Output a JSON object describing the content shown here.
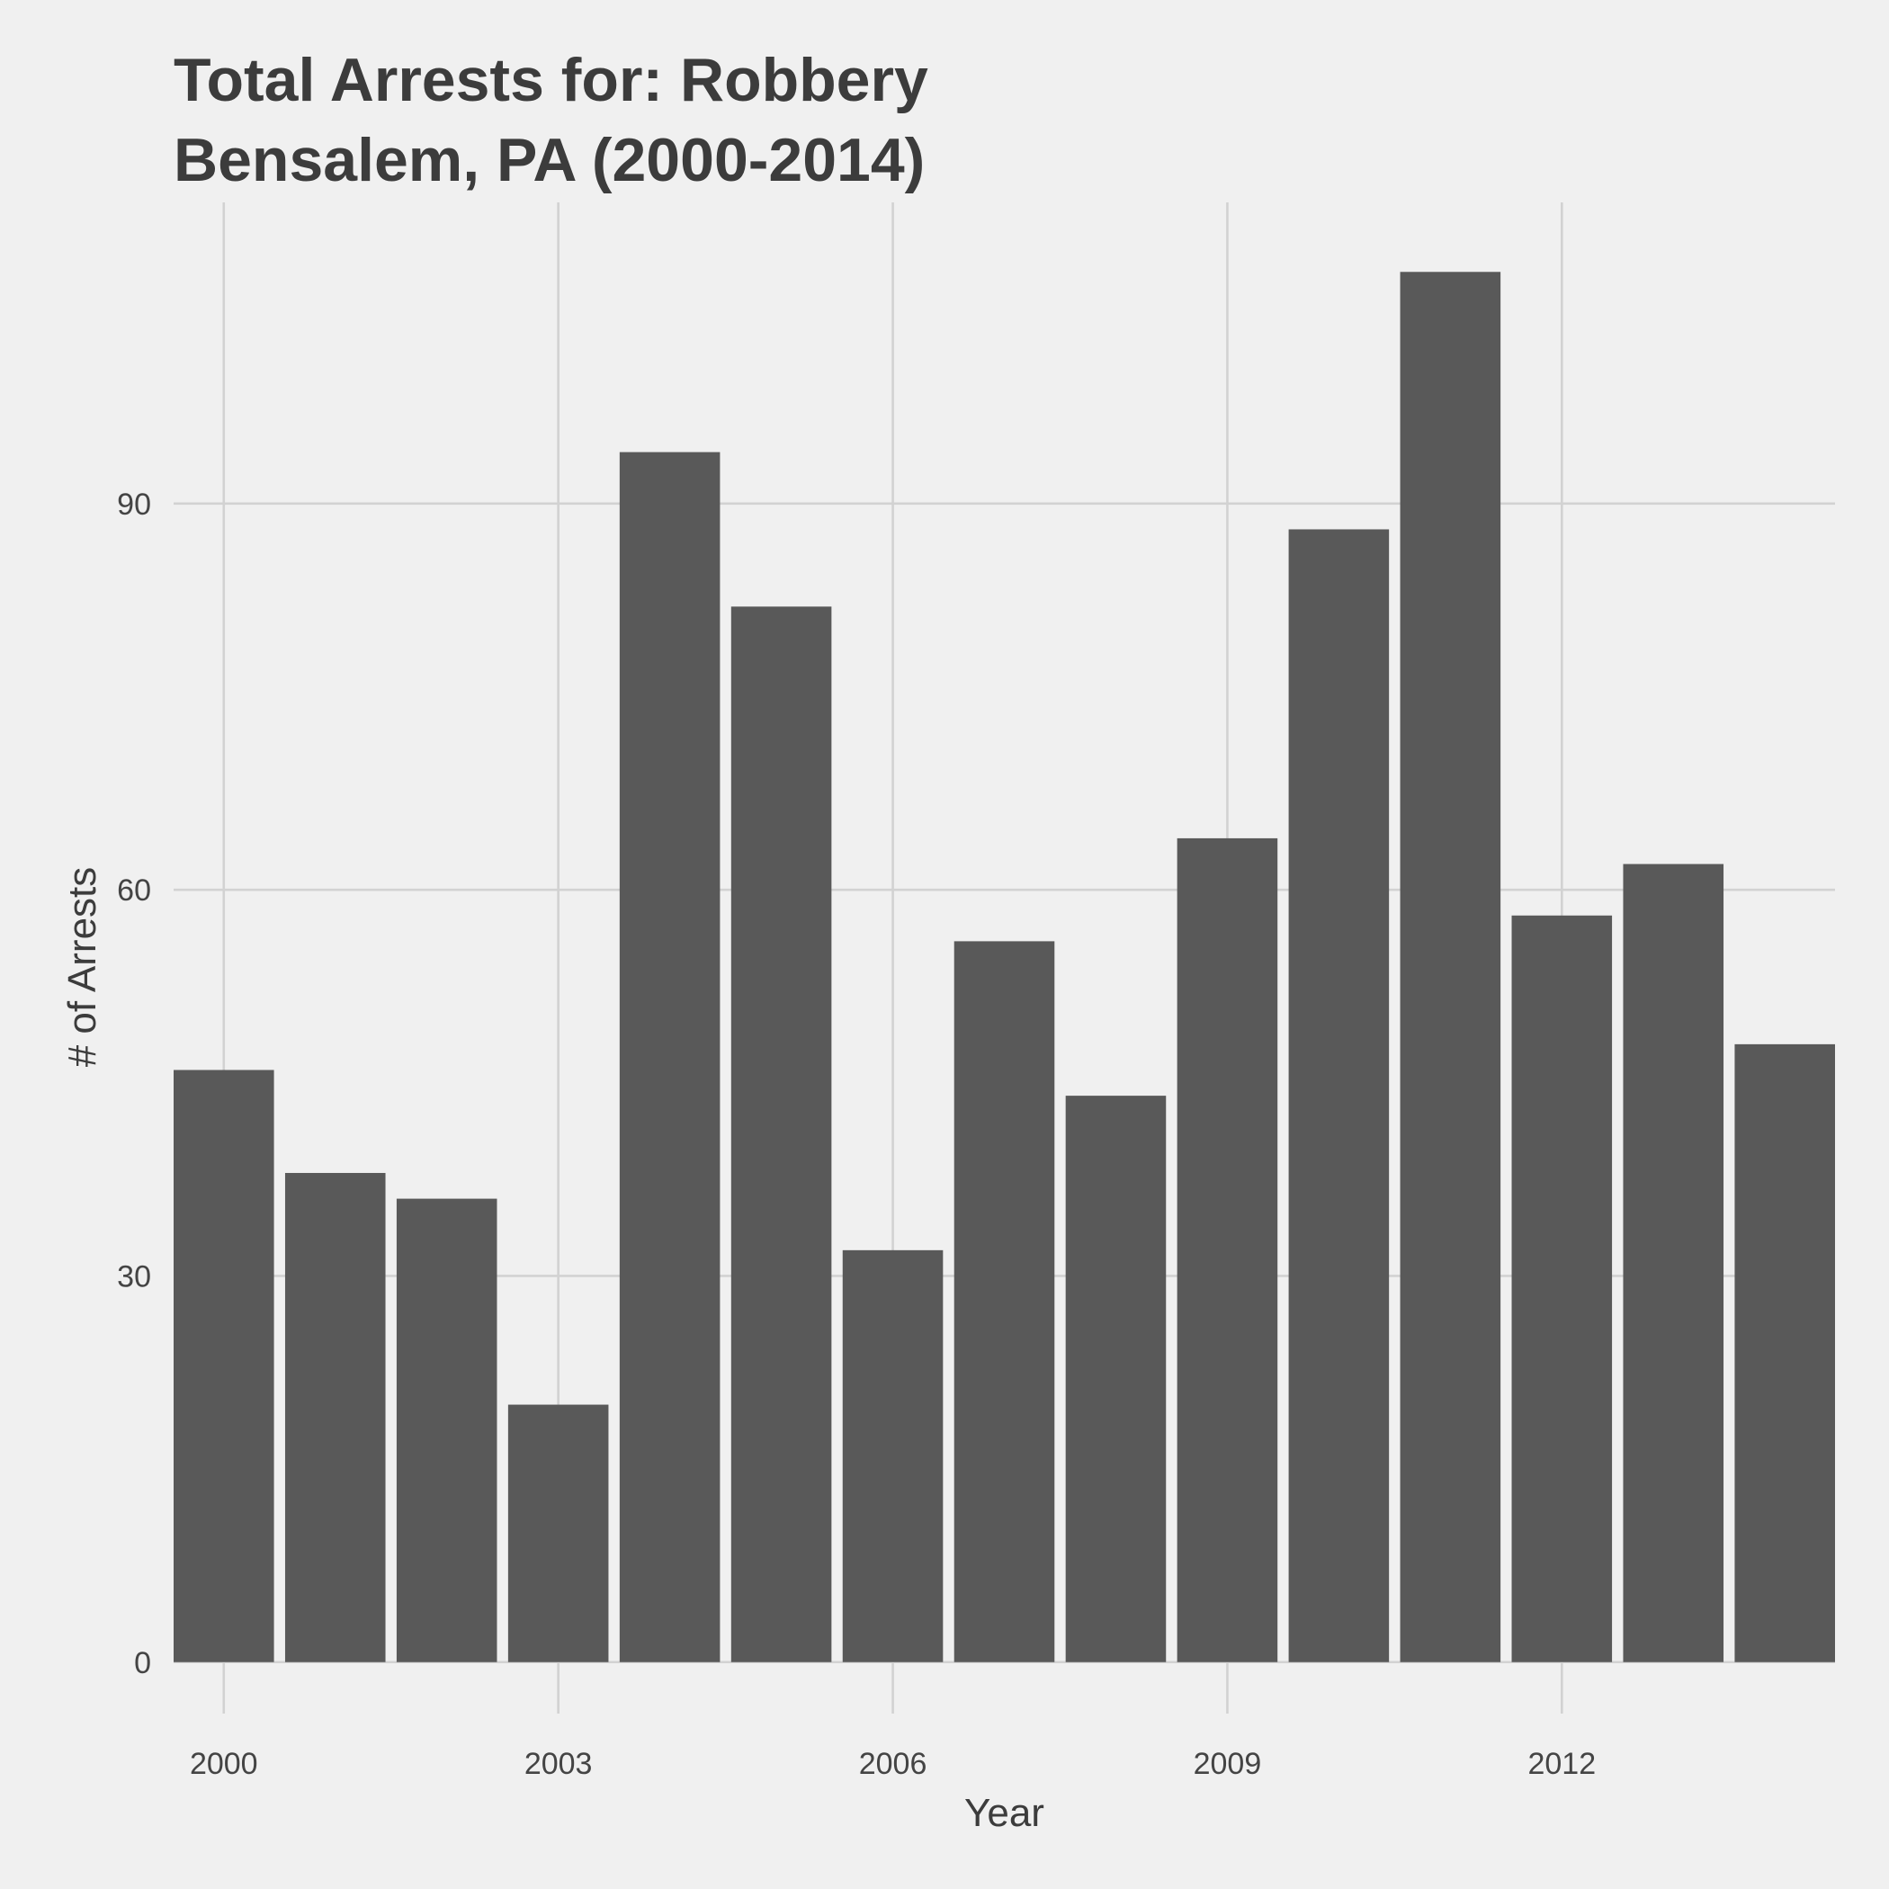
{
  "chart_data": {
    "type": "bar",
    "title": [
      "Total Arrests for: Robbery",
      "Bensalem, PA (2000-2014)"
    ],
    "xlabel": "Year",
    "ylabel": "# of Arrests",
    "x": [
      2000,
      2001,
      2002,
      2003,
      2004,
      2005,
      2006,
      2007,
      2008,
      2009,
      2010,
      2011,
      2012,
      2013,
      2014
    ],
    "values": [
      46,
      38,
      36,
      20,
      94,
      82,
      32,
      56,
      44,
      64,
      88,
      108,
      58,
      62,
      48
    ],
    "ylim": [
      -4,
      113.4
    ],
    "xlim": [
      1999.55,
      2014.45
    ],
    "y_ticks": [
      0,
      30,
      60,
      90
    ],
    "x_ticks": [
      2000,
      2003,
      2006,
      2009,
      2012
    ],
    "grid": true,
    "legend": "none",
    "colors": {
      "bar": "#595959",
      "background": "#f0f0f0",
      "grid": "#d2d2d2",
      "text": "#3c3c3c"
    }
  }
}
